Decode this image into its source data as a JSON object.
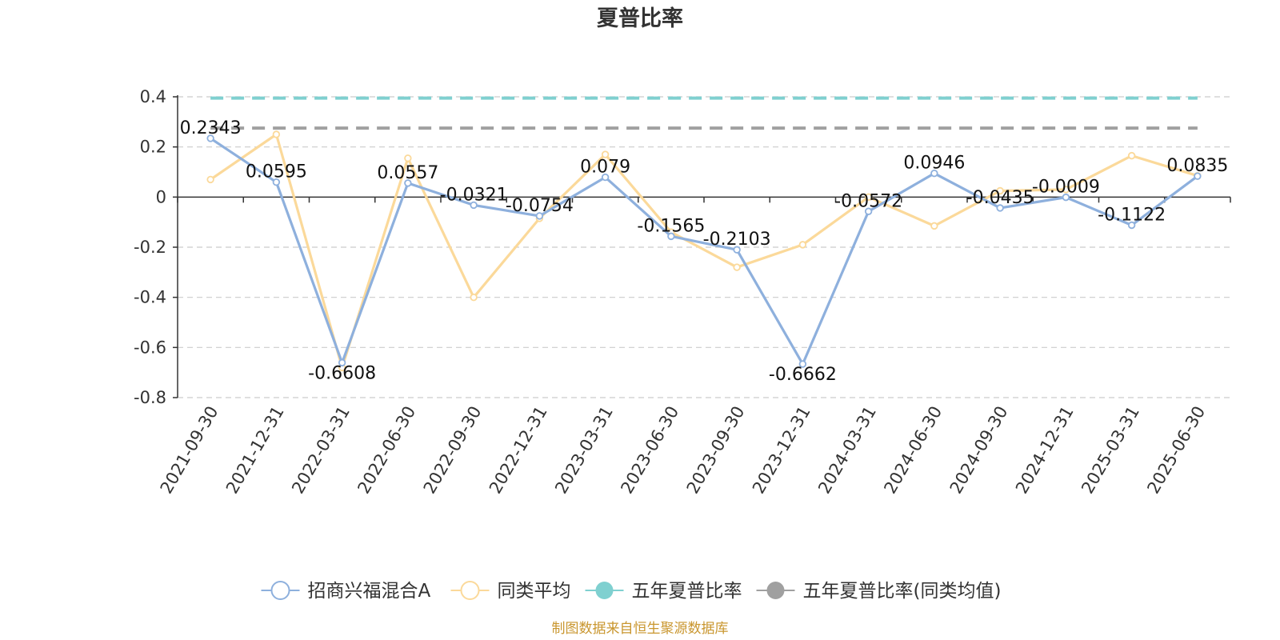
{
  "chart_data": {
    "type": "line",
    "title": "夏普比率",
    "categories": [
      "2021-09-30",
      "2021-12-31",
      "2022-03-31",
      "2022-06-30",
      "2022-09-30",
      "2022-12-31",
      "2023-03-31",
      "2023-06-30",
      "2023-09-30",
      "2023-12-31",
      "2024-03-31",
      "2024-06-30",
      "2024-09-30",
      "2024-12-31",
      "2025-03-31",
      "2025-06-30"
    ],
    "y_ticks": [
      "0.4",
      "0.2",
      "0",
      "-0.2",
      "-0.4",
      "-0.6",
      "-0.8"
    ],
    "ylim": [
      -0.8,
      0.4
    ],
    "grid": true,
    "legend_position": "bottom",
    "series": [
      {
        "name": "招商兴福混合A",
        "color": "#8eb0dd",
        "marker": "circle",
        "values": [
          0.2343,
          0.0595,
          -0.6608,
          0.0557,
          -0.0321,
          -0.0754,
          0.079,
          -0.1565,
          -0.2103,
          -0.6662,
          -0.0572,
          0.0946,
          -0.0435,
          -0.0009,
          -0.1122,
          0.0835
        ],
        "labels": [
          "0.2343",
          "0.0595",
          "-0.6608",
          "0.0557",
          "-0.0321",
          "-0.0754",
          "0.079",
          "-0.1565",
          "-0.2103",
          "-0.6662",
          "-0.0572",
          "0.0946",
          "-0.0435",
          "-0.0009",
          "-0.1122",
          "0.0835"
        ]
      },
      {
        "name": "同类平均",
        "color": "#fbd99a",
        "marker": "circle",
        "values": [
          0.07,
          0.25,
          -0.68,
          0.155,
          -0.4,
          -0.085,
          0.17,
          -0.14,
          -0.28,
          -0.19,
          0.0,
          -0.115,
          0.025,
          0.03,
          0.165,
          0.085
        ]
      },
      {
        "name": "五年夏普比率",
        "color": "#7fd0d0",
        "style": "dashed",
        "marker": "filled-circle",
        "value": 0.395
      },
      {
        "name": "五年夏普比率(同类均值)",
        "color": "#a0a0a0",
        "style": "dashed",
        "marker": "filled-circle",
        "value": 0.275
      }
    ]
  },
  "source": {
    "text": "制图数据来自恒生聚源数据库",
    "color": "#c9962e"
  }
}
